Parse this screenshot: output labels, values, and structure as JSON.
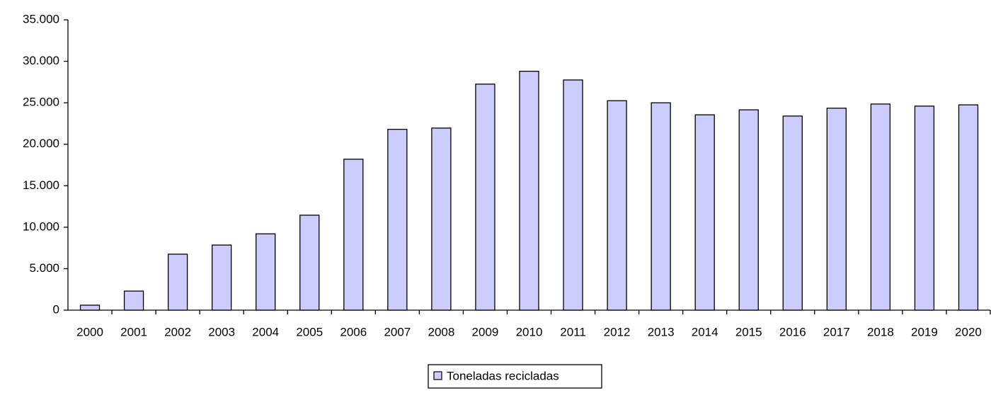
{
  "chart_data": {
    "type": "bar",
    "categories": [
      "2000",
      "2001",
      "2002",
      "2003",
      "2004",
      "2005",
      "2006",
      "2007",
      "2008",
      "2009",
      "2010",
      "2011",
      "2012",
      "2013",
      "2014",
      "2015",
      "2016",
      "2017",
      "2018",
      "2019",
      "2020"
    ],
    "series": [
      {
        "name": "Toneladas recicladas",
        "color": "#ccccff",
        "values": [
          600,
          2300,
          6750,
          7850,
          9200,
          11450,
          18200,
          21800,
          21950,
          27250,
          28800,
          27750,
          25250,
          25000,
          23550,
          24150,
          23400,
          24350,
          24850,
          24600,
          24750
        ]
      }
    ],
    "ylim": [
      0,
      35000
    ],
    "yticks": [
      0,
      {
        "value": 5000,
        "label": "5.000"
      },
      {
        "value": 10000,
        "label": "10.000"
      },
      {
        "value": 15000,
        "label": "15.000"
      },
      {
        "value": 20000,
        "label": "20.000"
      },
      {
        "value": 25000,
        "label": "25.000"
      },
      {
        "value": 30000,
        "label": "30.000"
      },
      {
        "value": 35000,
        "label": "35.000"
      }
    ],
    "grid": false,
    "legend": "bottom"
  }
}
